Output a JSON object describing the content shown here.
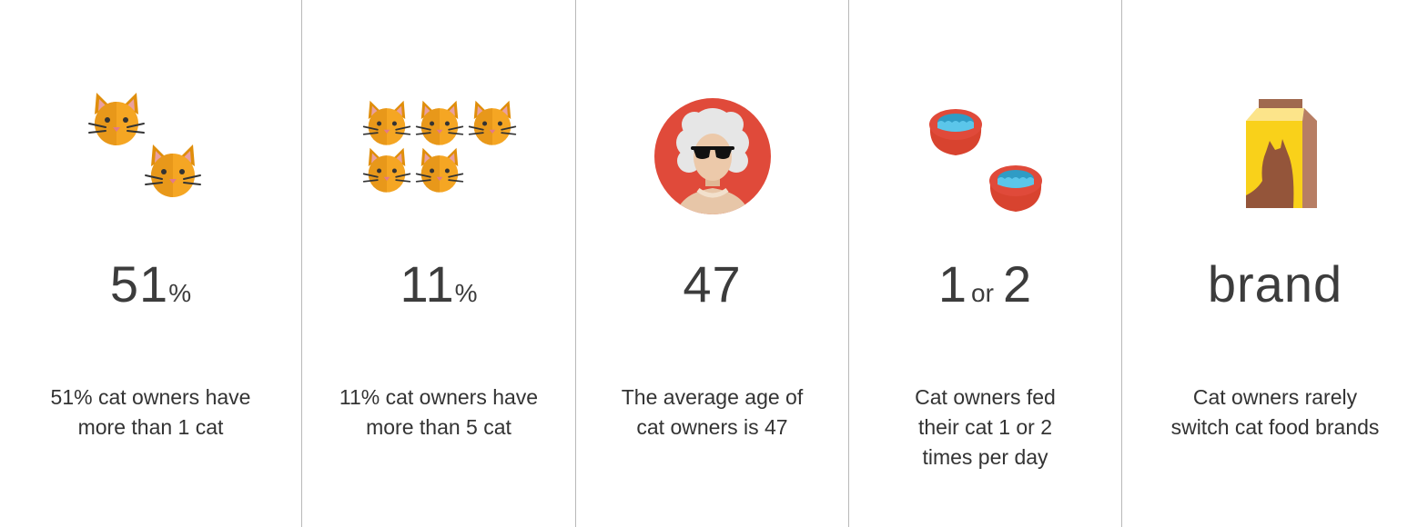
{
  "colors": {
    "cat_orange": "#F5A623",
    "cat_dark": "#E08E0B",
    "red": "#E04A3A",
    "water": "#5BC6EA",
    "box_yellow": "#F9D11A",
    "box_brown": "#94553A",
    "divider": "#B9B9B9"
  },
  "stats": [
    {
      "icon": "two-cats-icon",
      "value": "51",
      "unit": "%",
      "desc_lines": [
        "51% cat owners have",
        "more than 1 cat"
      ]
    },
    {
      "icon": "five-cats-icon",
      "value": "11",
      "unit": "%",
      "desc_lines": [
        "11% cat owners have",
        "more than 5 cat"
      ]
    },
    {
      "icon": "old-lady-avatar-icon",
      "value": "47",
      "desc_lines": [
        "The average age of",
        "cat owners is 47"
      ]
    },
    {
      "icon": "food-bowls-icon",
      "value_a": "1",
      "joiner": "or",
      "value_b": "2",
      "desc_lines": [
        "Cat owners fed",
        "their cat 1 or 2",
        "times per day"
      ]
    },
    {
      "icon": "cat-food-box-icon",
      "value": "brand",
      "desc_lines": [
        "Cat owners rarely",
        "switch cat food brands"
      ]
    }
  ]
}
